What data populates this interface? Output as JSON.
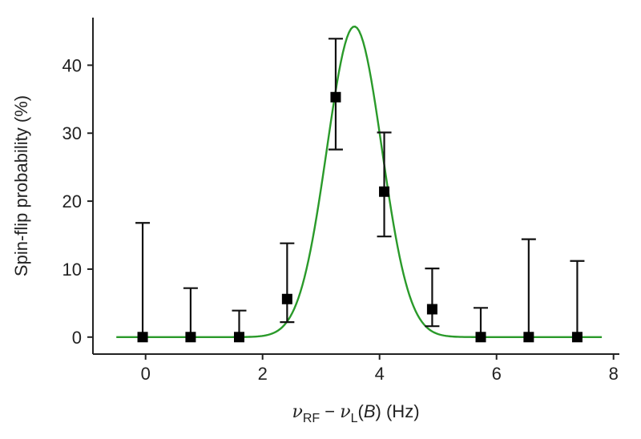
{
  "chart_data": {
    "type": "scatter",
    "xlabel_parts": {
      "nu1": "ν",
      "sub1": "RF",
      "minus": " − ",
      "nu2": "ν",
      "sub2": "L",
      "paren_open": "(",
      "b": "B",
      "paren_close": ") (Hz)"
    },
    "ylabel": "Spin-flip probability (%)",
    "xlim": [
      -0.9,
      8.1
    ],
    "ylim": [
      -2.5,
      47
    ],
    "xticks": [
      "0",
      "2",
      "4",
      "6",
      "8"
    ],
    "yticks": [
      "0",
      "10",
      "20",
      "30",
      "40"
    ],
    "grid": false,
    "legend": "none",
    "series": [
      {
        "kind": "data",
        "marker": "square",
        "color": "#000000",
        "points": [
          {
            "x": -0.05,
            "y": 0.0,
            "err_low": 0.0,
            "err_high": 16.8
          },
          {
            "x": 0.77,
            "y": 0.0,
            "err_low": 0.0,
            "err_high": 7.2
          },
          {
            "x": 1.6,
            "y": 0.0,
            "err_low": 0.0,
            "err_high": 3.9
          },
          {
            "x": 2.42,
            "y": 5.6,
            "err_low": 2.2,
            "err_high": 13.8
          },
          {
            "x": 3.25,
            "y": 35.3,
            "err_low": 27.6,
            "err_high": 43.9
          },
          {
            "x": 4.08,
            "y": 21.4,
            "err_low": 14.8,
            "err_high": 30.1
          },
          {
            "x": 4.9,
            "y": 4.1,
            "err_low": 1.6,
            "err_high": 10.1
          },
          {
            "x": 5.73,
            "y": 0.0,
            "err_low": 0.0,
            "err_high": 4.3
          },
          {
            "x": 6.55,
            "y": 0.0,
            "err_low": 0.0,
            "err_high": 14.4
          },
          {
            "x": 7.38,
            "y": 0.0,
            "err_low": 0.0,
            "err_high": 11.2
          }
        ]
      },
      {
        "kind": "fit",
        "shape": "gaussian",
        "color": "#2a9a2a",
        "x_range": [
          -0.5,
          7.8
        ],
        "amplitude": 45.7,
        "center": 3.57,
        "sigma": 0.47,
        "offset": 0.0
      }
    ]
  }
}
